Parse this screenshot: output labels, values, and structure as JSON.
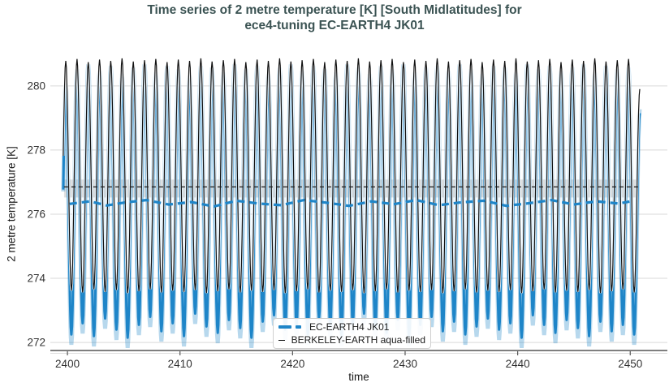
{
  "title": {
    "line1": "Time series of 2 metre temperature [K] [South Midlatitudes] for",
    "line2": "ece4-tuning EC-EARTH4 JK01"
  },
  "axes": {
    "x_label": "time",
    "y_label": "2 metre temperature [K]",
    "x_ticks": [
      2400,
      2410,
      2420,
      2430,
      2440,
      2450
    ],
    "y_ticks": [
      272,
      274,
      276,
      278,
      280
    ]
  },
  "legend": {
    "entries": [
      {
        "label": "EC-EARTH4 JK01",
        "marker": "thick-dashed-line",
        "color": "#1e85c8"
      },
      {
        "label": "BERKELEY-EARTH aqua-filled",
        "marker": "thin-solid-line",
        "color": "#111111"
      }
    ]
  },
  "colors": {
    "title": "#3b5353",
    "ec_blue": "#1e85c8",
    "berkeley_black": "#111111",
    "grid": "#d9d9d9",
    "axis": "#555555",
    "tick_text": "#333333",
    "mean_band_gray": "#c6c6c6"
  },
  "chart_data": {
    "type": "line",
    "title": "Time series of 2 metre temperature [K] [South Midlatitudes] for ece4-tuning EC-EARTH4 JK01",
    "xlabel": "time",
    "ylabel": "2 metre temperature [K]",
    "xlim": [
      2398.48,
      2453.3
    ],
    "ylim": [
      271.75,
      281.16
    ],
    "grid": "horizontal-only",
    "legend_position": "lower-center",
    "t_start": 2399.6,
    "t_end": 2450.85,
    "peak_phase": -0.15,
    "trough_phase": 0.35,
    "series": [
      {
        "name": "EC-EARTH4 JK01",
        "color": "#1e85c8",
        "style": "thick solid annual cycle, dashed running mean",
        "annual_peaks_start_year": 2400,
        "annual_peaks": [
          279.95,
          280.4,
          280.55,
          280.35,
          280.5,
          280.25,
          280.45,
          280.55,
          280.3,
          280.5,
          280.4,
          280.2,
          280.5,
          280.45,
          280.3,
          280.55,
          280.4,
          280.5,
          280.25,
          280.45,
          280.55,
          280.35,
          280.5,
          280.4,
          280.3,
          280.55,
          280.45,
          280.25,
          280.5,
          280.4,
          280.55,
          280.3,
          280.45,
          280.5,
          280.35,
          280.55,
          280.4,
          280.25,
          280.5,
          280.45,
          280.3,
          280.55,
          280.4,
          280.5,
          280.35,
          280.45,
          280.55,
          280.3,
          280.5,
          280.4,
          280.45,
          279.15
        ],
        "annual_troughs": [
          272.25,
          272.6,
          272.2,
          272.75,
          272.4,
          272.15,
          272.55,
          272.8,
          272.35,
          272.6,
          272.2,
          272.9,
          272.5,
          272.3,
          272.7,
          272.45,
          272.15,
          272.65,
          272.85,
          272.4,
          272.55,
          272.25,
          272.75,
          272.5,
          272.2,
          272.6,
          272.9,
          272.45,
          272.3,
          272.7,
          272.2,
          272.55,
          272.8,
          272.35,
          272.65,
          272.25,
          272.5,
          272.75,
          272.4,
          272.6,
          272.15,
          272.85,
          272.55,
          272.3,
          272.7,
          272.45,
          272.2,
          272.65,
          272.35,
          272.55,
          272.25
        ],
        "running_mean": [
          [
            2400.2,
            276.32
          ],
          [
            2402,
            276.4
          ],
          [
            2403.5,
            276.27
          ],
          [
            2405,
            276.36
          ],
          [
            2407,
            276.44
          ],
          [
            2409,
            276.3
          ],
          [
            2411,
            276.38
          ],
          [
            2413,
            276.24
          ],
          [
            2415,
            276.42
          ],
          [
            2417,
            276.33
          ],
          [
            2419,
            276.28
          ],
          [
            2421,
            276.44
          ],
          [
            2423,
            276.36
          ],
          [
            2425,
            276.26
          ],
          [
            2427,
            276.4
          ],
          [
            2429,
            276.31
          ],
          [
            2431,
            276.44
          ],
          [
            2433,
            276.28
          ],
          [
            2435,
            276.37
          ],
          [
            2437,
            276.42
          ],
          [
            2439,
            276.26
          ],
          [
            2441,
            276.34
          ],
          [
            2443,
            276.44
          ],
          [
            2445,
            276.3
          ],
          [
            2447,
            276.4
          ],
          [
            2449,
            276.33
          ],
          [
            2450.3,
            276.42
          ]
        ]
      },
      {
        "name": "BERKELEY-EARTH aqua-filled",
        "color": "#111111",
        "style": "thin solid annual cycle with white halo, flat dashed mean with gray uncertainty band",
        "annual_peaks_start_year": 2400,
        "annual_peaks": [
          280.78,
          280.84,
          280.74,
          280.82,
          280.78,
          280.86,
          280.76,
          280.8,
          280.84,
          280.74,
          280.82,
          280.78,
          280.86,
          280.76,
          280.8,
          280.84,
          280.74,
          280.82,
          280.78,
          280.86,
          280.76,
          280.8,
          280.84,
          280.74,
          280.82,
          280.78,
          280.86,
          280.76,
          280.8,
          280.84,
          280.74,
          280.82,
          280.78,
          280.86,
          280.76,
          280.8,
          280.84,
          280.74,
          280.82,
          280.78,
          280.86,
          280.76,
          280.8,
          280.84,
          280.74,
          280.82,
          280.78,
          280.86,
          280.76,
          280.8,
          280.84,
          279.9
        ],
        "annual_troughs": [
          273.62,
          273.56,
          273.66,
          273.58,
          273.64,
          273.54,
          273.6,
          273.66,
          273.56,
          273.62,
          273.58,
          273.64,
          273.54,
          273.6,
          273.66,
          273.56,
          273.62,
          273.58,
          273.64,
          273.54,
          273.6,
          273.66,
          273.56,
          273.62,
          273.58,
          273.64,
          273.54,
          273.6,
          273.66,
          273.56,
          273.62,
          273.58,
          273.64,
          273.54,
          273.6,
          273.66,
          273.56,
          273.62,
          273.58,
          273.64,
          273.54,
          273.6,
          273.66,
          273.56,
          273.62,
          273.58,
          273.64,
          273.54,
          273.6,
          273.66,
          273.56
        ],
        "mean": 276.85,
        "mean_band": [
          276.52,
          277.08
        ],
        "mean_band_x_range": [
          2399.7,
          2450.7
        ]
      }
    ]
  }
}
